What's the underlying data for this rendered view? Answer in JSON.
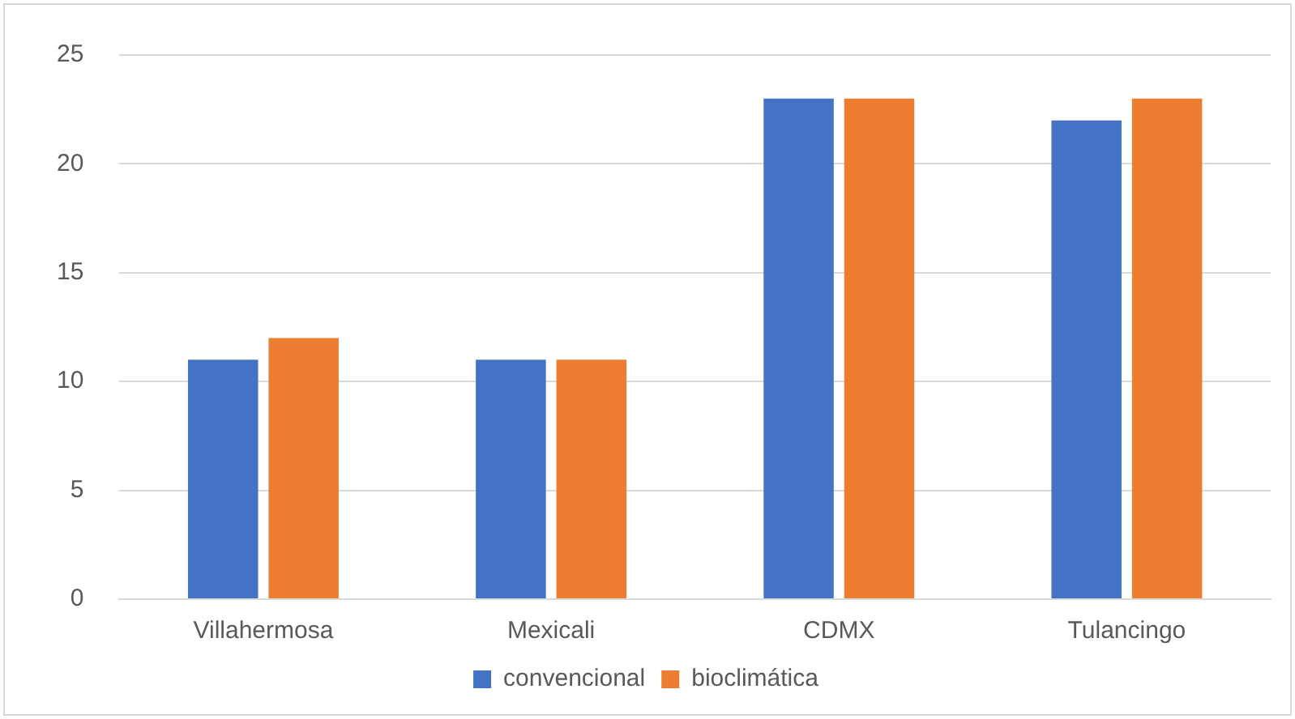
{
  "chart_data": {
    "type": "bar",
    "categories": [
      "Villahermosa",
      "Mexicali",
      "CDMX",
      "Tulancingo"
    ],
    "series": [
      {
        "name": "convencional",
        "color": "#4472c4",
        "values": [
          11,
          11,
          23,
          22
        ]
      },
      {
        "name": "bioclimática",
        "color": "#ed7d31",
        "values": [
          12,
          11,
          23,
          23
        ]
      }
    ],
    "ylim": [
      0,
      25
    ],
    "yticks": [
      0,
      5,
      10,
      15,
      20,
      25
    ],
    "grid": "y",
    "legend": "bottom"
  }
}
